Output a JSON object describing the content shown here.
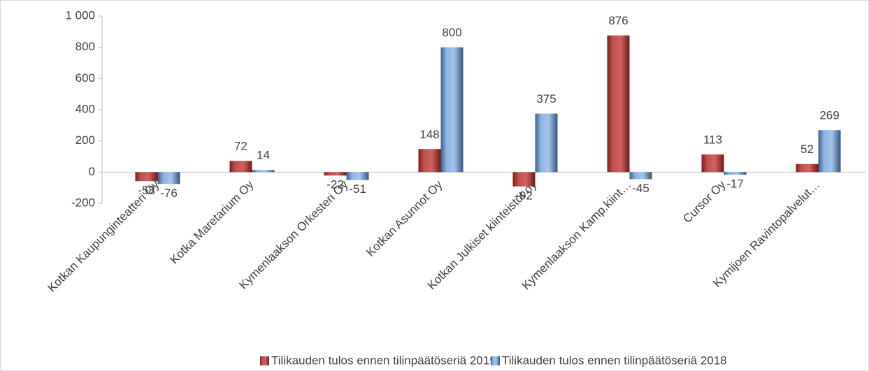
{
  "chart_data": {
    "type": "bar",
    "categories": [
      "Kotkan Kaupunginteatteri Oy",
      "Kotka Maretarium Oy",
      "Kymenlaakson Orkesteri Oy",
      "Kotkan Asunnot Oy",
      "Kotkan Julkiset kiinteistöt oy",
      "Kymenlaakson Kamp.kiint…",
      "Cursor Oy",
      "Kymijoen Ravintopalvelut…"
    ],
    "series": [
      {
        "name": "Tilikauden tulos ennen tilinpäätöseriä 2019",
        "color": "#c0504d",
        "values": [
          -58,
          72,
          -22,
          148,
          -92,
          876,
          113,
          52
        ]
      },
      {
        "name": "Tilikauden tulos ennen tilinpäätöseriä 2018",
        "color": "#8db3e2",
        "values": [
          -76,
          14,
          -51,
          800,
          375,
          -45,
          -17,
          269
        ]
      }
    ],
    "ylim": [
      -200,
      1000
    ],
    "yticks": [
      -200,
      0,
      200,
      400,
      600,
      800,
      {
        "value": 1000,
        "label": "1 000"
      }
    ],
    "legend": "bottom"
  }
}
